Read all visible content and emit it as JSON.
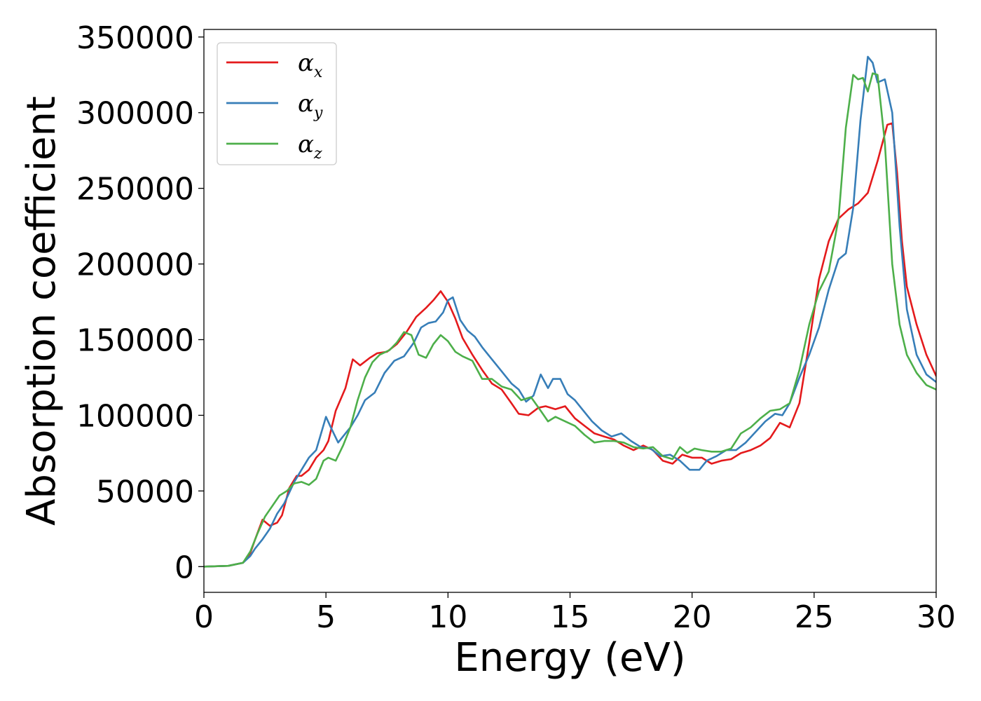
{
  "chart_data": {
    "type": "line",
    "xlabel": "Energy (eV)",
    "ylabel": "Absorption coefficient",
    "xlim": [
      0,
      30
    ],
    "ylim": [
      -17000,
      355000
    ],
    "xticks": [
      0,
      5,
      10,
      15,
      20,
      25,
      30
    ],
    "xtick_labels": [
      "0",
      "5",
      "10",
      "15",
      "20",
      "25",
      "30"
    ],
    "yticks": [
      0,
      50000,
      100000,
      150000,
      200000,
      250000,
      300000,
      350000
    ],
    "ytick_labels": [
      "0",
      "50000",
      "100000",
      "150000",
      "200000",
      "250000",
      "300000",
      "350000"
    ],
    "grid": false,
    "legend_position": "top-left",
    "series": [
      {
        "name": "αx",
        "legend_base": "α",
        "legend_sub": "x",
        "color": "#e41a1c",
        "x": [
          0,
          1,
          1.6,
          1.9,
          2.1,
          2.4,
          2.7,
          3.0,
          3.2,
          3.5,
          3.8,
          4.0,
          4.3,
          4.6,
          4.9,
          5.1,
          5.4,
          5.8,
          6.1,
          6.4,
          6.8,
          7.1,
          7.5,
          7.9,
          8.3,
          8.7,
          9.1,
          9.4,
          9.7,
          10.0,
          10.3,
          10.6,
          11.0,
          11.4,
          11.8,
          12.2,
          12.6,
          12.9,
          13.3,
          13.7,
          14.0,
          14.4,
          14.8,
          15.2,
          15.6,
          16.0,
          16.4,
          16.8,
          17.2,
          17.6,
          18.0,
          18.4,
          18.8,
          19.2,
          19.6,
          20.0,
          20.4,
          20.8,
          21.2,
          21.6,
          22.0,
          22.4,
          22.8,
          23.2,
          23.6,
          24.0,
          24.4,
          24.8,
          25.2,
          25.6,
          26.0,
          26.4,
          26.8,
          27.2,
          27.6,
          28.0,
          28.2,
          28.4,
          28.6,
          28.8,
          29.2,
          29.6,
          30.0
        ],
        "y": [
          0,
          500,
          2500,
          9000,
          18000,
          31000,
          27000,
          29000,
          34000,
          52000,
          60000,
          60000,
          64000,
          72000,
          77000,
          83000,
          103000,
          118000,
          137000,
          133000,
          138000,
          141000,
          142000,
          147000,
          155000,
          165000,
          171000,
          176000,
          182000,
          175000,
          164000,
          151000,
          140000,
          130000,
          121000,
          117000,
          108000,
          101000,
          100000,
          105000,
          106000,
          104000,
          106000,
          98000,
          93000,
          88000,
          86000,
          84000,
          80000,
          77000,
          80000,
          77000,
          70000,
          68000,
          74000,
          72000,
          72000,
          68000,
          70000,
          71000,
          75000,
          77000,
          80000,
          85000,
          95000,
          92000,
          108000,
          148000,
          190000,
          215000,
          230000,
          236000,
          240000,
          247000,
          268000,
          292000,
          293000,
          260000,
          215000,
          185000,
          160000,
          140000,
          126000
        ]
      },
      {
        "name": "αy",
        "legend_base": "α",
        "legend_sub": "y",
        "color": "#377eb8",
        "x": [
          0,
          1,
          1.6,
          1.9,
          2.1,
          2.4,
          2.7,
          3.0,
          3.3,
          3.7,
          4.0,
          4.3,
          4.6,
          5.0,
          5.2,
          5.5,
          5.8,
          6.0,
          6.3,
          6.6,
          7.0,
          7.4,
          7.8,
          8.2,
          8.6,
          8.9,
          9.2,
          9.5,
          9.8,
          10.0,
          10.2,
          10.5,
          10.8,
          11.1,
          11.4,
          11.8,
          12.2,
          12.6,
          12.9,
          13.2,
          13.5,
          13.8,
          14.1,
          14.3,
          14.6,
          14.9,
          15.2,
          15.5,
          15.9,
          16.3,
          16.7,
          17.1,
          17.5,
          17.9,
          18.3,
          18.7,
          19.1,
          19.5,
          19.9,
          20.3,
          20.6,
          21.0,
          21.4,
          21.8,
          22.2,
          22.6,
          23.0,
          23.4,
          23.7,
          24.0,
          24.4,
          24.8,
          25.2,
          25.6,
          26.0,
          26.3,
          26.6,
          26.9,
          27.2,
          27.4,
          27.6,
          27.9,
          28.2,
          28.5,
          28.8,
          29.2,
          29.6,
          30.0
        ],
        "y": [
          0,
          500,
          2500,
          7000,
          12000,
          18000,
          25000,
          35000,
          42000,
          56000,
          64000,
          72000,
          77000,
          99000,
          92000,
          82000,
          88000,
          92000,
          100000,
          110000,
          115000,
          128000,
          136000,
          139000,
          148000,
          158000,
          161000,
          162000,
          168000,
          176000,
          178000,
          163000,
          156000,
          152000,
          145000,
          137000,
          129000,
          121000,
          117000,
          109000,
          113000,
          127000,
          118000,
          124000,
          124000,
          114000,
          110000,
          104000,
          96000,
          90000,
          86000,
          88000,
          83000,
          79000,
          78000,
          73000,
          74000,
          70000,
          64000,
          64000,
          70000,
          73000,
          77000,
          77000,
          82000,
          89000,
          96000,
          101000,
          100000,
          108000,
          125000,
          140000,
          158000,
          183000,
          203000,
          207000,
          237000,
          295000,
          337000,
          333000,
          320000,
          322000,
          300000,
          225000,
          170000,
          140000,
          127000,
          122000
        ]
      },
      {
        "name": "αz",
        "legend_base": "α",
        "legend_sub": "z",
        "color": "#4daf4a",
        "x": [
          0,
          1,
          1.6,
          1.9,
          2.2,
          2.5,
          2.8,
          3.1,
          3.4,
          3.7,
          4.0,
          4.3,
          4.6,
          4.9,
          5.1,
          5.4,
          5.7,
          6.0,
          6.3,
          6.6,
          6.9,
          7.2,
          7.6,
          7.9,
          8.2,
          8.5,
          8.8,
          9.1,
          9.4,
          9.7,
          10.0,
          10.3,
          10.6,
          11.0,
          11.4,
          11.8,
          12.2,
          12.6,
          13.0,
          13.4,
          13.8,
          14.1,
          14.4,
          14.8,
          15.2,
          15.6,
          16.0,
          16.4,
          16.8,
          17.2,
          17.6,
          18.0,
          18.4,
          18.8,
          19.2,
          19.5,
          19.8,
          20.1,
          20.4,
          20.8,
          21.2,
          21.6,
          22.0,
          22.4,
          22.8,
          23.2,
          23.6,
          24.0,
          24.4,
          24.8,
          25.2,
          25.6,
          26.0,
          26.3,
          26.6,
          26.8,
          27.0,
          27.2,
          27.4,
          27.6,
          27.9,
          28.2,
          28.5,
          28.8,
          29.2,
          29.6,
          30.0
        ],
        "y": [
          0,
          500,
          2500,
          10000,
          22000,
          33000,
          40000,
          47000,
          50000,
          55000,
          56000,
          54000,
          58000,
          70000,
          72000,
          70000,
          80000,
          92000,
          110000,
          125000,
          135000,
          140000,
          143000,
          148000,
          155000,
          153000,
          140000,
          138000,
          147000,
          153000,
          149000,
          142000,
          139000,
          136000,
          124000,
          124000,
          119000,
          117000,
          110000,
          112000,
          103000,
          96000,
          99000,
          96000,
          93000,
          87000,
          82000,
          83000,
          83000,
          82000,
          79000,
          78000,
          79000,
          73000,
          71000,
          79000,
          75000,
          78000,
          77000,
          76000,
          76000,
          78000,
          88000,
          92000,
          98000,
          103000,
          104000,
          108000,
          130000,
          160000,
          182000,
          195000,
          230000,
          290000,
          325000,
          322000,
          323000,
          314000,
          326000,
          325000,
          280000,
          200000,
          160000,
          140000,
          128000,
          120000,
          117000
        ]
      }
    ]
  }
}
